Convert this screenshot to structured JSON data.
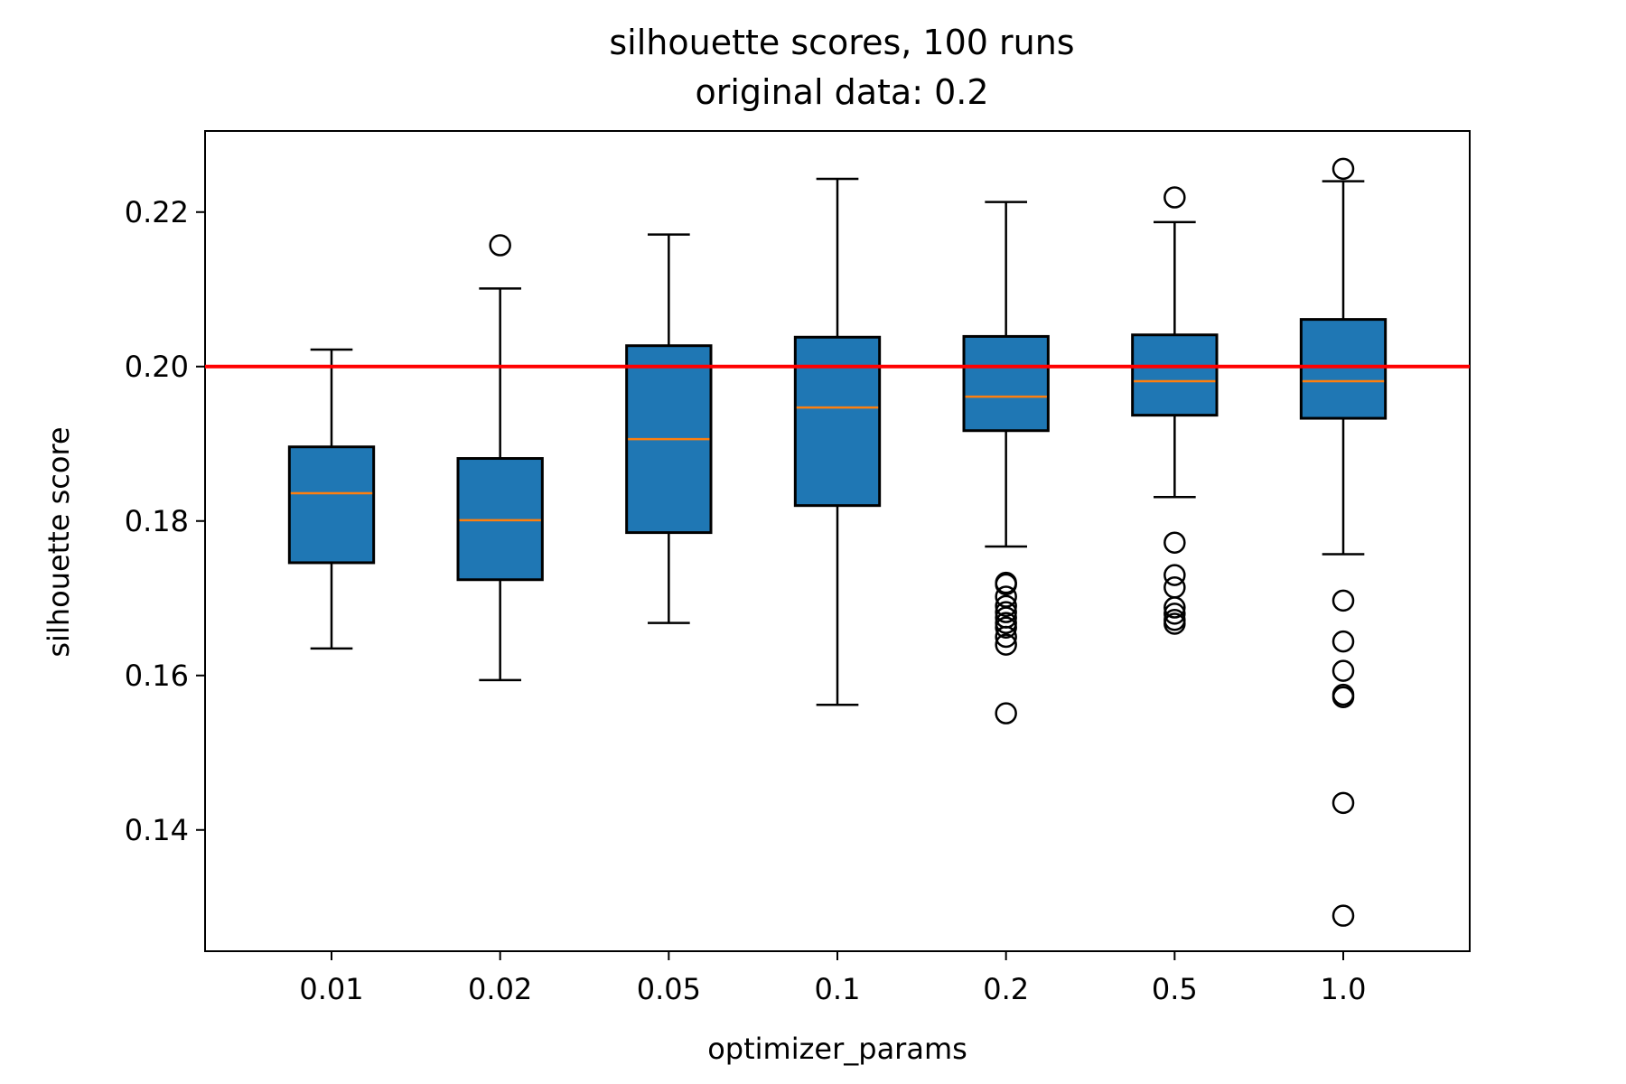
{
  "chart_data": {
    "type": "box",
    "title": "silhouette scores, 100 runs",
    "subtitle": "original data: 0.2",
    "xlabel": "optimizer_params",
    "ylabel": "silhouette score",
    "ylim": [
      0.1243,
      0.2305
    ],
    "yticks": [
      "0.14",
      "0.16",
      "0.18",
      "0.20",
      "0.22"
    ],
    "categories": [
      "0.01",
      "0.02",
      "0.05",
      "0.1",
      "0.2",
      "0.5",
      "1.0"
    ],
    "box_color": "#1f77b4",
    "median_color": "#ff7f0e",
    "reference_line": {
      "value": 0.2,
      "color": "#ff0000"
    },
    "boxes": [
      {
        "label": "0.01",
        "whisker_low": 0.1635,
        "q1": 0.1746,
        "median": 0.1836,
        "q3": 0.1896,
        "whisker_high": 0.2022,
        "outliers": []
      },
      {
        "label": "0.02",
        "whisker_low": 0.1594,
        "q1": 0.1724,
        "median": 0.1801,
        "q3": 0.1881,
        "whisker_high": 0.2101,
        "outliers": [
          0.2157
        ]
      },
      {
        "label": "0.05",
        "whisker_low": 0.1668,
        "q1": 0.1785,
        "median": 0.1906,
        "q3": 0.2027,
        "whisker_high": 0.2171,
        "outliers": []
      },
      {
        "label": "0.1",
        "whisker_low": 0.1562,
        "q1": 0.182,
        "median": 0.1947,
        "q3": 0.2038,
        "whisker_high": 0.2243,
        "outliers": []
      },
      {
        "label": "0.2",
        "whisker_low": 0.1767,
        "q1": 0.1917,
        "median": 0.1961,
        "q3": 0.2039,
        "whisker_high": 0.2213,
        "outliers": [
          0.172,
          0.1718,
          0.1702,
          0.169,
          0.1682,
          0.1675,
          0.1668,
          0.1662,
          0.165,
          0.164,
          0.1551
        ]
      },
      {
        "label": "0.5",
        "whisker_low": 0.1831,
        "q1": 0.1937,
        "median": 0.1981,
        "q3": 0.2041,
        "whisker_high": 0.2187,
        "outliers": [
          0.2219,
          0.1772,
          0.173,
          0.1714,
          0.1688,
          0.168,
          0.1672,
          0.1667
        ]
      },
      {
        "label": "1.0",
        "whisker_low": 0.1757,
        "q1": 0.1933,
        "median": 0.1981,
        "q3": 0.2061,
        "whisker_high": 0.224,
        "outliers": [
          0.2256,
          0.1697,
          0.1644,
          0.1606,
          0.1575,
          0.1572,
          0.1435,
          0.1289
        ]
      }
    ]
  }
}
